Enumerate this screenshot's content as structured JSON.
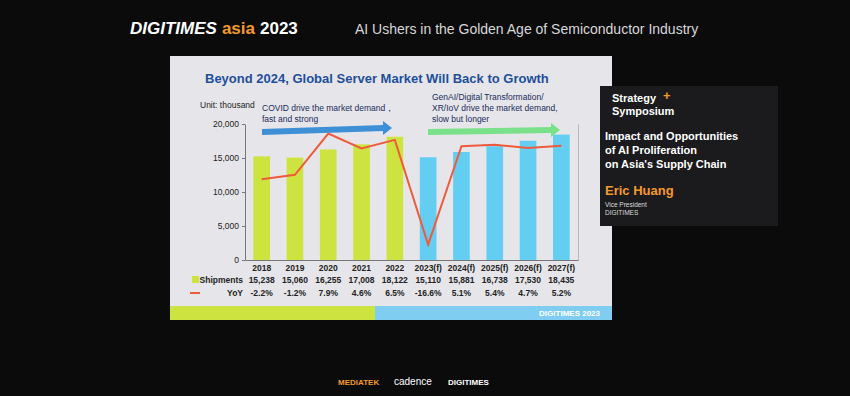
{
  "header": {
    "brand": [
      "DIGITIMES",
      "asia",
      "2023"
    ],
    "tagline": "AI Ushers in the Golden Age of Semiconductor Industry"
  },
  "chart_data": {
    "type": "bar",
    "title": "Beyond 2024, Global Server Market Will Back to Growth",
    "ylabel": "Unit: thousand",
    "annotations": [
      [
        "COVID drive the market demand，",
        "fast and strong"
      ],
      [
        "GenAI/Digital Transformation/",
        "XR/IoV drive the market demand,",
        "slow but longer"
      ]
    ],
    "categories": [
      "2018",
      "2019",
      "2020",
      "2021",
      "2022",
      "2023(f)",
      "2024(f)",
      "2025(f)",
      "2026(f)",
      "2027(f)"
    ],
    "series": [
      {
        "name": "Shipments",
        "type": "bar",
        "colors": [
          "#cde33f",
          "#cde33f",
          "#cde33f",
          "#cde33f",
          "#cde33f",
          "#64cdf2",
          "#64cdf2",
          "#64cdf2",
          "#64cdf2",
          "#64cdf2"
        ],
        "values": [
          15238,
          15060,
          16255,
          17008,
          18122,
          15110,
          15881,
          16738,
          17530,
          18435
        ],
        "value_labels": [
          "15,238",
          "15,060",
          "16,255",
          "17,008",
          "18,122",
          "15,110",
          "15,881",
          "16,738",
          "17,530",
          "18,435"
        ]
      },
      {
        "name": "YoY",
        "type": "line",
        "axis": "y2",
        "color": "#f05a3c",
        "values": [
          -2.2,
          -1.2,
          7.9,
          4.6,
          6.5,
          -16.6,
          5.1,
          5.4,
          4.7,
          5.2
        ],
        "value_labels": [
          "-2.2%",
          "-1.2%",
          "7.9%",
          "4.6%",
          "6.5%",
          "-16.6%",
          "5.1%",
          "5.4%",
          "4.7%",
          "5.2%"
        ]
      }
    ],
    "ylim": [
      0,
      20000
    ],
    "yticks": [
      0,
      {
        "value": 5000,
        "label": "5,000"
      },
      {
        "value": 10000,
        "label": "10,000"
      },
      {
        "value": 15000,
        "label": "15,000"
      },
      {
        "value": 20000,
        "label": "20,000"
      }
    ],
    "y2lim": [
      -20,
      10
    ],
    "grid": false,
    "data_labels": true,
    "footer": "DIGITIMES 2023"
  },
  "sidebar": {
    "event": [
      "Strategy",
      "+",
      "Symposium"
    ],
    "talk": [
      "Impact and Opportunities",
      "of AI Proliferation",
      "on Asia's Supply Chain"
    ],
    "speaker": "Eric Huang",
    "role": [
      "Vice President",
      "DIGITIMES"
    ]
  },
  "sponsors": [
    "MEDIATEK",
    "cadence",
    "DIGITIMES"
  ]
}
